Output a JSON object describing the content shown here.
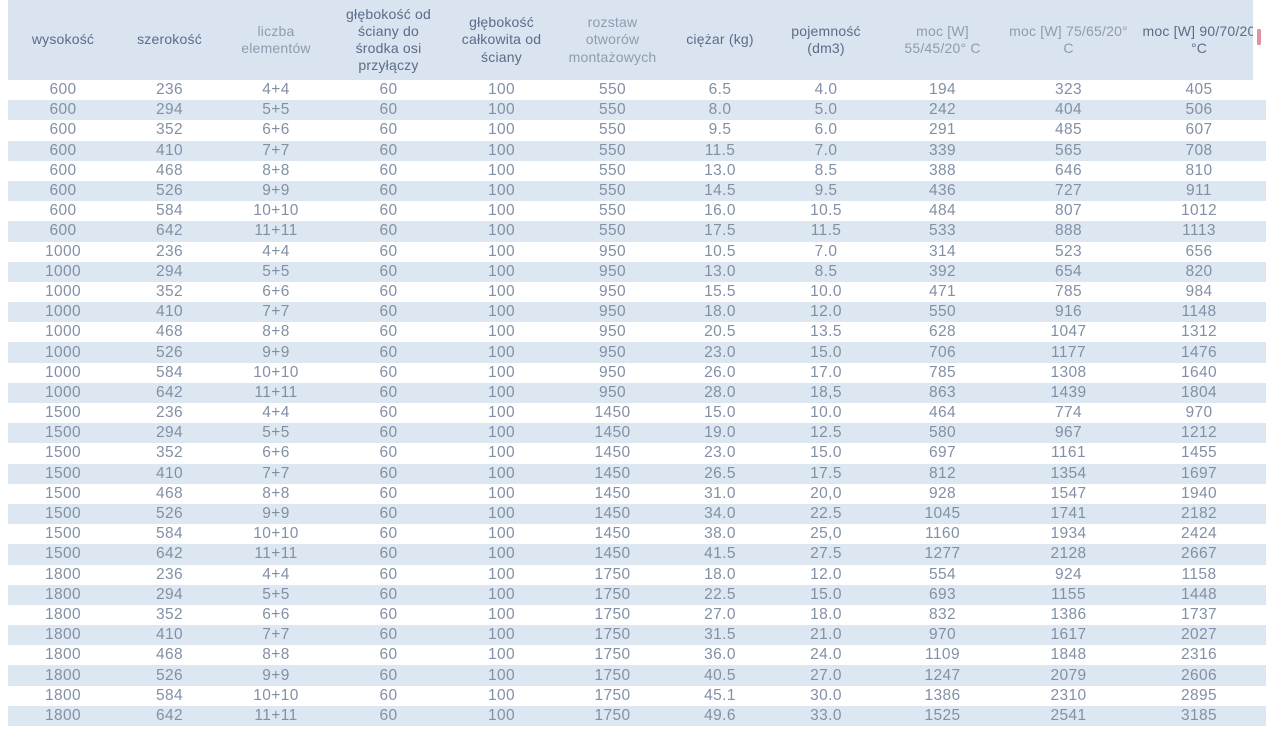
{
  "colors": {
    "header_bg": "#d9e4f0",
    "stripe_bg": "#dde7f2",
    "header_text_dark": "#5c6b87",
    "header_text_light": "#8e9cb0",
    "cell_text": "#8290a5",
    "edge_fragment": "#dd96a0"
  },
  "chart_data": {
    "type": "table",
    "columns": [
      {
        "id": "wysokosc",
        "label": "wysokość",
        "tone": "dark"
      },
      {
        "id": "szerokosc",
        "label": "szerokość",
        "tone": "dark"
      },
      {
        "id": "liczba-elementow",
        "label": "liczba elementów",
        "tone": "light"
      },
      {
        "id": "glebokosc-od-sciany-do-srodka-osi-przylaczy",
        "label": "głębokość od ściany do środka osi przyłączy",
        "tone": "dark"
      },
      {
        "id": "glebokosc-calkowita-od-sciany",
        "label": "głębokość całkowita od ściany",
        "tone": "dark"
      },
      {
        "id": "rozstaw-otworow-montazowych",
        "label": "rozstaw otworów montażowych",
        "tone": "light"
      },
      {
        "id": "ciezar-kg",
        "label": "ciężar (kg)",
        "tone": "dark"
      },
      {
        "id": "pojemnosc-dm3",
        "label": "pojemność (dm3)",
        "tone": "dark"
      },
      {
        "id": "moc-w-55-45-20c",
        "label": "moc [W] 55/45/20° C",
        "tone": "light"
      },
      {
        "id": "moc-w-75-65-20c",
        "label": "moc [W] 75/65/20° C",
        "tone": "light"
      },
      {
        "id": "moc-w-90-70-20c",
        "label": "moc [W] 90/70/20 °C",
        "tone": "dark"
      }
    ],
    "rows": [
      [
        "600",
        "236",
        "4+4",
        "60",
        "100",
        "550",
        "6.5",
        "4.0",
        "194",
        "323",
        "405"
      ],
      [
        "600",
        "294",
        "5+5",
        "60",
        "100",
        "550",
        "8.0",
        "5.0",
        "242",
        "404",
        "506"
      ],
      [
        "600",
        "352",
        "6+6",
        "60",
        "100",
        "550",
        "9.5",
        "6.0",
        "291",
        "485",
        "607"
      ],
      [
        "600",
        "410",
        "7+7",
        "60",
        "100",
        "550",
        "11.5",
        "7.0",
        "339",
        "565",
        "708"
      ],
      [
        "600",
        "468",
        "8+8",
        "60",
        "100",
        "550",
        "13.0",
        "8.5",
        "388",
        "646",
        "810"
      ],
      [
        "600",
        "526",
        "9+9",
        "60",
        "100",
        "550",
        "14.5",
        "9.5",
        "436",
        "727",
        "911"
      ],
      [
        "600",
        "584",
        "10+10",
        "60",
        "100",
        "550",
        "16.0",
        "10.5",
        "484",
        "807",
        "1012"
      ],
      [
        "600",
        "642",
        "11+11",
        "60",
        "100",
        "550",
        "17.5",
        "11.5",
        "533",
        "888",
        "1113"
      ],
      [
        "1000",
        "236",
        "4+4",
        "60",
        "100",
        "950",
        "10.5",
        "7.0",
        "314",
        "523",
        "656"
      ],
      [
        "1000",
        "294",
        "5+5",
        "60",
        "100",
        "950",
        "13.0",
        "8.5",
        "392",
        "654",
        "820"
      ],
      [
        "1000",
        "352",
        "6+6",
        "60",
        "100",
        "950",
        "15.5",
        "10.0",
        "471",
        "785",
        "984"
      ],
      [
        "1000",
        "410",
        "7+7",
        "60",
        "100",
        "950",
        "18.0",
        "12.0",
        "550",
        "916",
        "1148"
      ],
      [
        "1000",
        "468",
        "8+8",
        "60",
        "100",
        "950",
        "20.5",
        "13.5",
        "628",
        "1047",
        "1312"
      ],
      [
        "1000",
        "526",
        "9+9",
        "60",
        "100",
        "950",
        "23.0",
        "15.0",
        "706",
        "1177",
        "1476"
      ],
      [
        "1000",
        "584",
        "10+10",
        "60",
        "100",
        "950",
        "26.0",
        "17.0",
        "785",
        "1308",
        "1640"
      ],
      [
        "1000",
        "642",
        "11+11",
        "60",
        "100",
        "950",
        "28.0",
        "18,5",
        "863",
        "1439",
        "1804"
      ],
      [
        "1500",
        "236",
        "4+4",
        "60",
        "100",
        "1450",
        "15.0",
        "10.0",
        "464",
        "774",
        "970"
      ],
      [
        "1500",
        "294",
        "5+5",
        "60",
        "100",
        "1450",
        "19.0",
        "12.5",
        "580",
        "967",
        "1212"
      ],
      [
        "1500",
        "352",
        "6+6",
        "60",
        "100",
        "1450",
        "23.0",
        "15.0",
        "697",
        "1161",
        "1455"
      ],
      [
        "1500",
        "410",
        "7+7",
        "60",
        "100",
        "1450",
        "26.5",
        "17.5",
        "812",
        "1354",
        "1697"
      ],
      [
        "1500",
        "468",
        "8+8",
        "60",
        "100",
        "1450",
        "31.0",
        "20,0",
        "928",
        "1547",
        "1940"
      ],
      [
        "1500",
        "526",
        "9+9",
        "60",
        "100",
        "1450",
        "34.0",
        "22.5",
        "1045",
        "1741",
        "2182"
      ],
      [
        "1500",
        "584",
        "10+10",
        "60",
        "100",
        "1450",
        "38.0",
        "25,0",
        "1160",
        "1934",
        "2424"
      ],
      [
        "1500",
        "642",
        "11+11",
        "60",
        "100",
        "1450",
        "41.5",
        "27.5",
        "1277",
        "2128",
        "2667"
      ],
      [
        "1800",
        "236",
        "4+4",
        "60",
        "100",
        "1750",
        "18.0",
        "12.0",
        "554",
        "924",
        "1158"
      ],
      [
        "1800",
        "294",
        "5+5",
        "60",
        "100",
        "1750",
        "22.5",
        "15.0",
        "693",
        "1155",
        "1448"
      ],
      [
        "1800",
        "352",
        "6+6",
        "60",
        "100",
        "1750",
        "27.0",
        "18.0",
        "832",
        "1386",
        "1737"
      ],
      [
        "1800",
        "410",
        "7+7",
        "60",
        "100",
        "1750",
        "31.5",
        "21.0",
        "970",
        "1617",
        "2027"
      ],
      [
        "1800",
        "468",
        "8+8",
        "60",
        "100",
        "1750",
        "36.0",
        "24.0",
        "1109",
        "1848",
        "2316"
      ],
      [
        "1800",
        "526",
        "9+9",
        "60",
        "100",
        "1750",
        "40.5",
        "27.0",
        "1247",
        "2079",
        "2606"
      ],
      [
        "1800",
        "584",
        "10+10",
        "60",
        "100",
        "1750",
        "45.1",
        "30.0",
        "1386",
        "2310",
        "2895"
      ],
      [
        "1800",
        "642",
        "11+11",
        "60",
        "100",
        "1750",
        "49.6",
        "33.0",
        "1525",
        "2541",
        "3185"
      ]
    ]
  }
}
